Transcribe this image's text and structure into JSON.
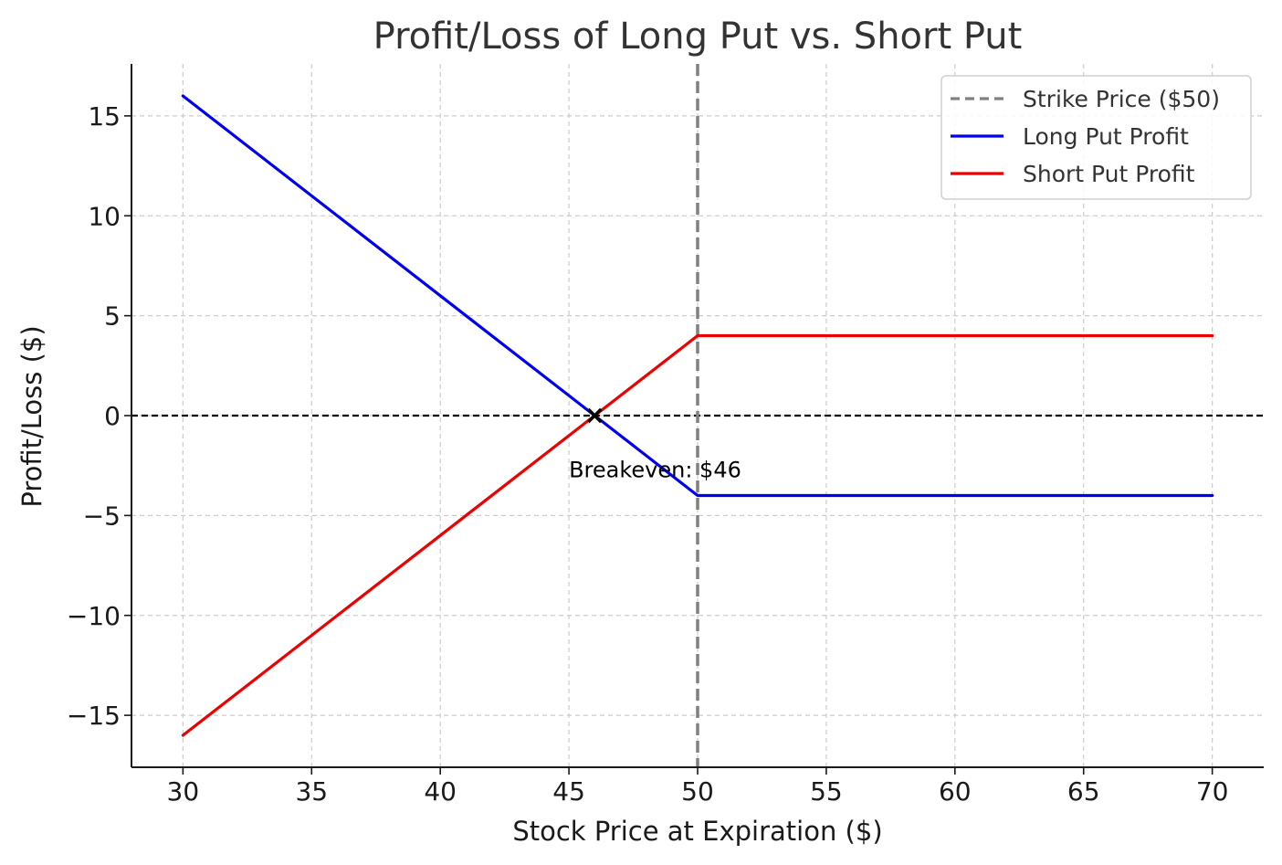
{
  "chart_data": {
    "type": "line",
    "title": "Profit/Loss of Long Put vs. Short Put",
    "xlabel": "Stock Price at Expiration ($)",
    "ylabel": "Profit/Loss ($)",
    "xlim": [
      28,
      72
    ],
    "ylim": [
      -17.6,
      17.6
    ],
    "xticks": [
      30,
      35,
      40,
      45,
      50,
      55,
      60,
      65,
      70
    ],
    "yticks": [
      -15,
      -10,
      -5,
      0,
      5,
      10,
      15
    ],
    "ytick_labels": [
      "−15",
      "−10",
      "−5",
      "0",
      "5",
      "10",
      "15"
    ],
    "grid": true,
    "legend_position": "top-right",
    "strike": {
      "name": "Strike Price ($50)",
      "x": 50,
      "color": "#808080"
    },
    "zero_line": {
      "y": 0,
      "color": "#000000"
    },
    "series": [
      {
        "name": "Long Put Profit",
        "color": "#0000ee",
        "x": [
          30,
          50,
          70
        ],
        "y": [
          16,
          -4,
          -4
        ]
      },
      {
        "name": "Short Put Profit",
        "color": "#ee0000",
        "x": [
          30,
          50,
          70
        ],
        "y": [
          -16,
          4,
          4
        ]
      }
    ],
    "breakeven": {
      "x": 46,
      "y": 0,
      "label": "Breakeven: $46",
      "label_x": 45,
      "label_y": -3
    }
  }
}
